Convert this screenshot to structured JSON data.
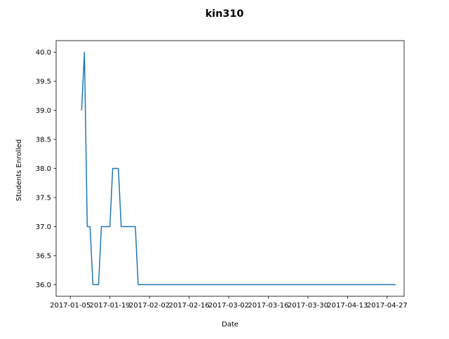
{
  "chart_data": {
    "type": "line",
    "title": "kin310",
    "xlabel": "Date",
    "ylabel": "Students Enrolled",
    "x_axis_type": "date",
    "xlim": [
      "2016-12-31",
      "2017-05-03"
    ],
    "ylim": [
      35.8,
      40.2
    ],
    "grid": false,
    "x_ticks": [
      "2017-01-05",
      "2017-01-19",
      "2017-02-02",
      "2017-02-16",
      "2017-03-02",
      "2017-03-16",
      "2017-03-30",
      "2017-04-13",
      "2017-04-27"
    ],
    "y_ticks": [
      "36.0",
      "36.5",
      "37.0",
      "37.5",
      "38.0",
      "38.5",
      "39.0",
      "39.5",
      "40.0"
    ],
    "series": [
      {
        "color": "#1f77b4",
        "points": [
          [
            "2017-01-09",
            39
          ],
          [
            "2017-01-10",
            40
          ],
          [
            "2017-01-11",
            37
          ],
          [
            "2017-01-12",
            37
          ],
          [
            "2017-01-13",
            36
          ],
          [
            "2017-01-15",
            36
          ],
          [
            "2017-01-16",
            37
          ],
          [
            "2017-01-19",
            37
          ],
          [
            "2017-01-20",
            38
          ],
          [
            "2017-01-22",
            38
          ],
          [
            "2017-01-23",
            37
          ],
          [
            "2017-01-28",
            37
          ],
          [
            "2017-01-29",
            36
          ],
          [
            "2017-04-30",
            36
          ]
        ]
      }
    ]
  }
}
